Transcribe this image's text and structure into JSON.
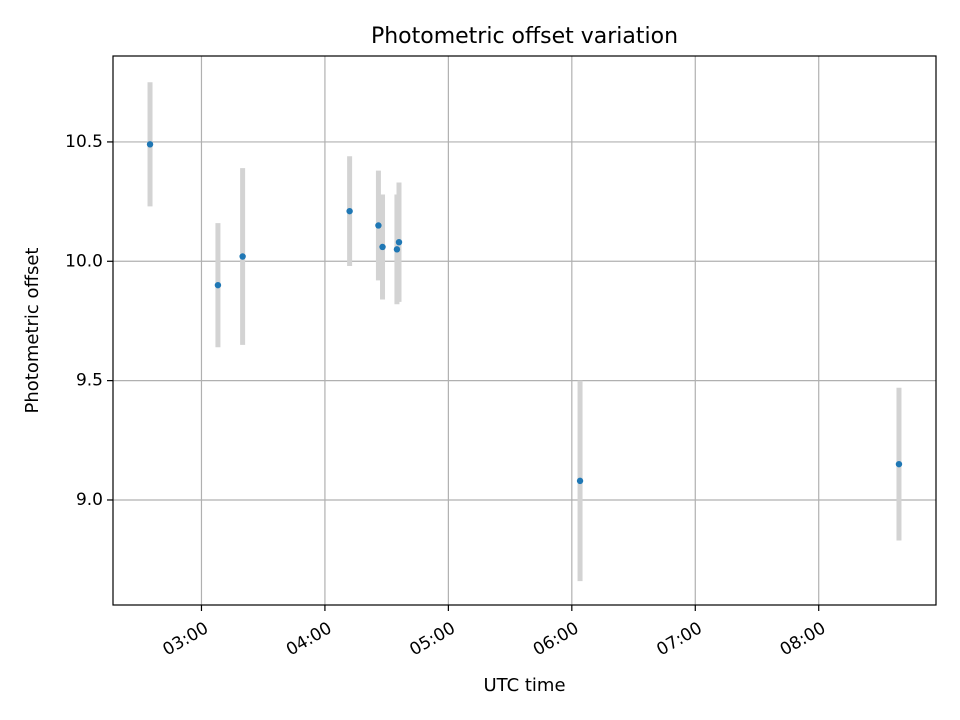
{
  "chart_data": {
    "type": "scatter",
    "title": "Photometric offset variation",
    "xlabel": "UTC time",
    "ylabel": "Photometric offset",
    "x_ticks": [
      "03:00",
      "04:00",
      "05:00",
      "06:00",
      "07:00",
      "08:00"
    ],
    "y_ticks": [
      "9.0",
      "9.5",
      "10.0",
      "10.5"
    ],
    "xlim": [
      "02:17",
      "08:57"
    ],
    "ylim": [
      8.56,
      10.86
    ],
    "grid": true,
    "points": [
      {
        "x": "02:35",
        "y": 10.49,
        "err": 0.26
      },
      {
        "x": "03:08",
        "y": 9.9,
        "err": 0.26
      },
      {
        "x": "03:20",
        "y": 10.02,
        "err": 0.37
      },
      {
        "x": "04:12",
        "y": 10.21,
        "err": 0.23
      },
      {
        "x": "04:26",
        "y": 10.15,
        "err": 0.23
      },
      {
        "x": "04:28",
        "y": 10.06,
        "err": 0.22
      },
      {
        "x": "04:35",
        "y": 10.05,
        "err": 0.23
      },
      {
        "x": "04:36",
        "y": 10.08,
        "err": 0.25
      },
      {
        "x": "06:04",
        "y": 9.08,
        "err": 0.42
      },
      {
        "x": "08:39",
        "y": 9.15,
        "err": 0.32
      }
    ],
    "colors": {
      "marker": "#1f77b4",
      "errorbar": "#d3d3d3",
      "grid": "#b0b0b0"
    }
  }
}
